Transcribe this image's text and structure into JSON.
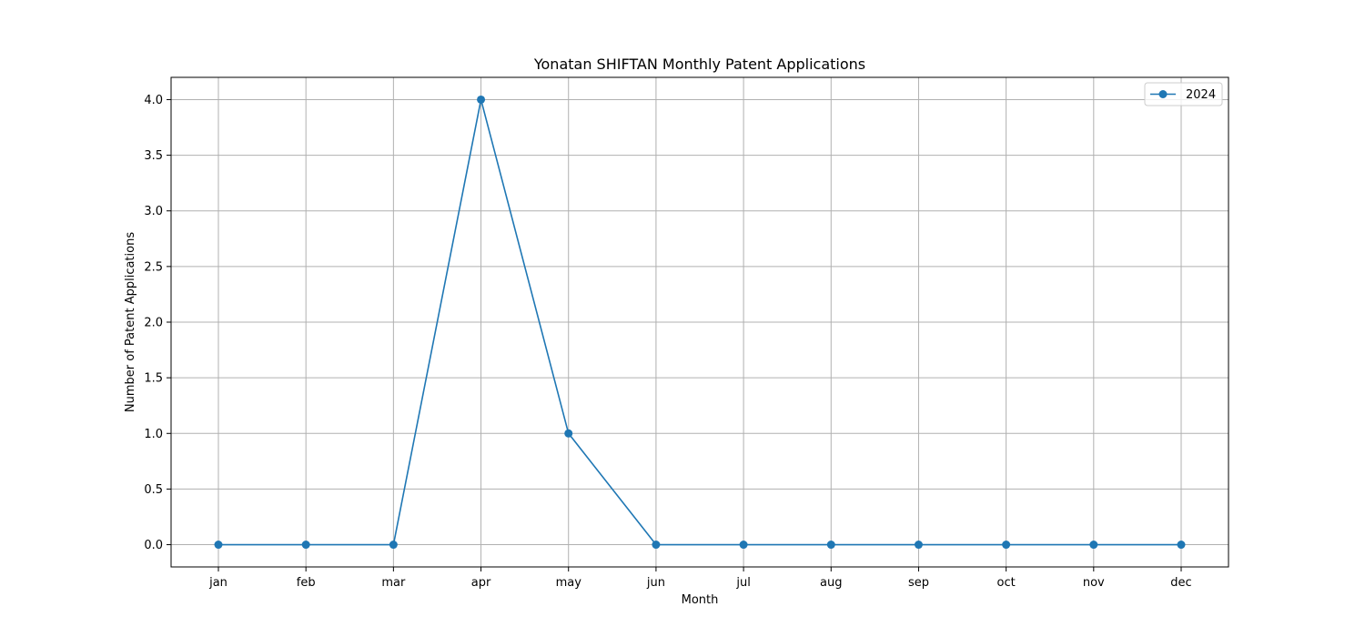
{
  "chart_data": {
    "type": "line",
    "title": "Yonatan SHIFTAN Monthly Patent Applications",
    "xlabel": "Month",
    "ylabel": "Number of Patent Applications",
    "categories": [
      "jan",
      "feb",
      "mar",
      "apr",
      "may",
      "jun",
      "jul",
      "aug",
      "sep",
      "oct",
      "nov",
      "dec"
    ],
    "series": [
      {
        "name": "2024",
        "values": [
          0,
          0,
          0,
          4,
          1,
          0,
          0,
          0,
          0,
          0,
          0,
          0
        ],
        "color": "#1f77b4",
        "marker": "circle"
      }
    ],
    "ylim": [
      -0.2,
      4.2
    ],
    "yticks": [
      "0.0",
      "0.5",
      "1.0",
      "1.5",
      "2.0",
      "2.5",
      "3.0",
      "3.5",
      "4.0"
    ],
    "grid": true,
    "legend_position": "top-right",
    "colors": {
      "grid": "#b0b0b0",
      "axis": "#000000"
    }
  }
}
